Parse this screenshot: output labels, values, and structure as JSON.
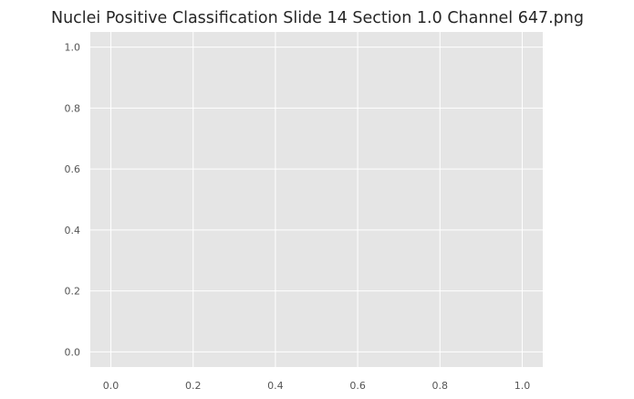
{
  "colors": {
    "plot_background": "#e5e5e5",
    "grid": "#ffffff",
    "tick_label": "#555555",
    "title": "#262626",
    "figure_background": "#ffffff"
  },
  "chart_data": {
    "type": "scatter",
    "title": "Nuclei Positive Classification Slide  14 Section 1.0 Channel 647.png",
    "xlabel": "",
    "ylabel": "",
    "x": [],
    "y": [],
    "xlim": [
      -0.05,
      1.05
    ],
    "ylim": [
      -0.05,
      1.05
    ],
    "x_ticks": [
      0.0,
      0.2,
      0.4,
      0.6,
      0.8,
      1.0
    ],
    "y_ticks": [
      0.0,
      0.2,
      0.4,
      0.6,
      0.8,
      1.0
    ],
    "x_tick_labels": [
      "0.0",
      "0.2",
      "0.4",
      "0.6",
      "0.8",
      "1.0"
    ],
    "y_tick_labels": [
      "0.0",
      "0.2",
      "0.4",
      "0.6",
      "0.8",
      "1.0"
    ],
    "grid": true,
    "legend": "none"
  }
}
